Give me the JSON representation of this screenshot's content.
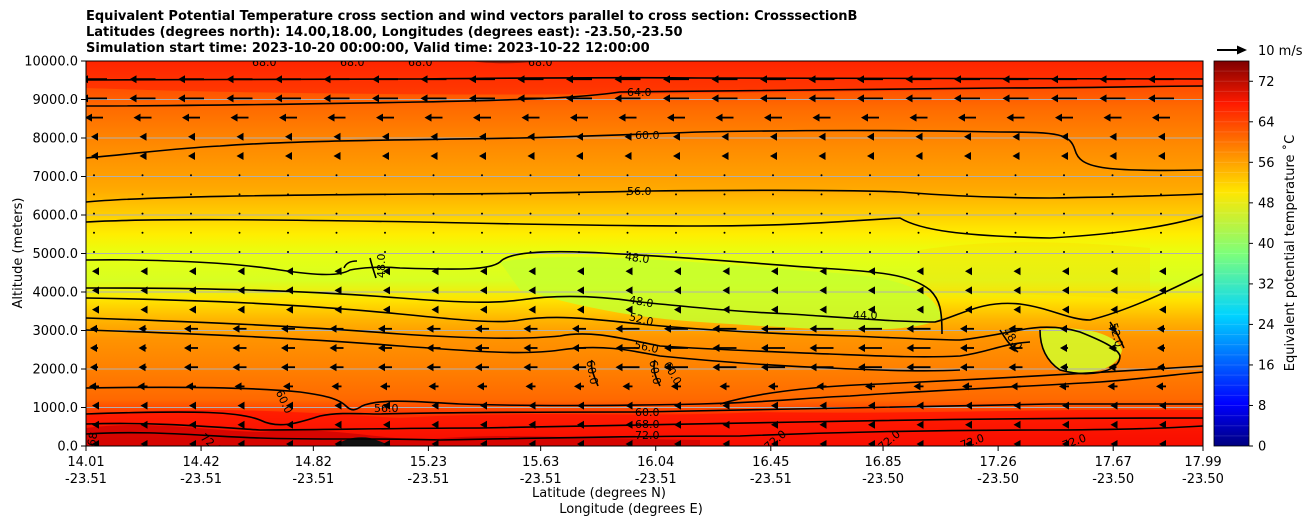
{
  "title": {
    "line1": "Equivalent Potential Temperature cross section and wind vectors parallel to cross section: CrosssectionB",
    "line2": "Latitudes (degrees north): 14.00,18.00, Longitudes (degrees east): -23.50,-23.50",
    "line3": "Simulation start time: 2023-10-20 00:00:00, Valid time: 2023-10-22 12:00:00"
  },
  "wind_key": {
    "label": "10 m/s",
    "colors": {
      "arrow": "#000000"
    }
  },
  "colorbar": {
    "label": "Equivalent potential temperature ˚C"
  },
  "chart_data": {
    "type": "heatmap",
    "title": "Equivalent Potential Temperature cross section and wind vectors parallel to cross section: CrosssectionB",
    "ylabel": "Altitude (meters)",
    "xlabel_lat": "Latitude (degrees N)",
    "xlabel_lon": "Longitude (degrees E)",
    "ylim": [
      0,
      10000
    ],
    "y_ticks": [
      "0.0",
      "1000.0",
      "2000.0",
      "3000.0",
      "4000.0",
      "5000.0",
      "6000.0",
      "7000.0",
      "8000.0",
      "9000.0",
      "10000.0"
    ],
    "x_ticks_lat": [
      "14.01",
      "14.42",
      "14.82",
      "15.23",
      "15.63",
      "16.04",
      "16.45",
      "16.85",
      "17.26",
      "17.67",
      "17.99"
    ],
    "x_ticks_lon": [
      "-23.51",
      "-23.51",
      "-23.51",
      "-23.51",
      "-23.51",
      "-23.51",
      "-23.51",
      "-23.50",
      "-23.50",
      "-23.50",
      "-23.50"
    ],
    "colorbar_ticks": [
      "0",
      "8",
      "16",
      "24",
      "32",
      "40",
      "48",
      "56",
      "64",
      "72"
    ],
    "colorbar_range": [
      0,
      76
    ],
    "colormap": "jet",
    "grid": "horizontal",
    "wind_reference": "10 m/s",
    "contour_labels": [
      "68.0",
      "68.0",
      "68.0",
      "68.0",
      "64.0",
      "60.0",
      "56.0",
      "48.0",
      "48.0",
      "48.0",
      "52.0",
      "56.0",
      "60.0",
      "60.0",
      "60.0",
      "44.0",
      "48.0",
      "52.0",
      "56.0",
      "60.0",
      "60.0",
      "68.0",
      "72.0",
      "72.0",
      "72.0",
      "72.0",
      "72.0",
      "72.0",
      "68"
    ],
    "colors": {
      "background": "#ffffff",
      "grid": "#b0b0b0",
      "contour": "#000000"
    }
  }
}
